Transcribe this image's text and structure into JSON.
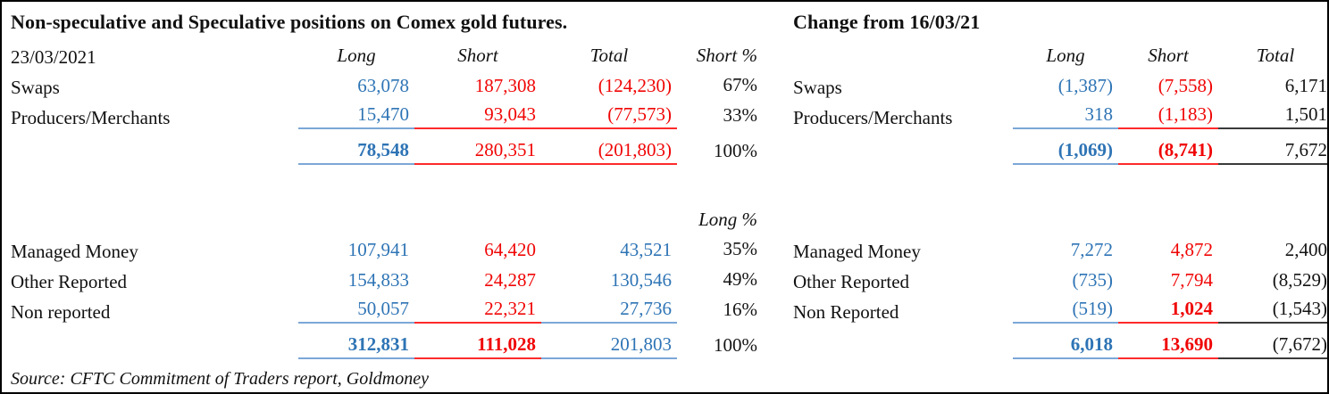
{
  "colors": {
    "long_blue": "#2e74b5",
    "short_red": "#f00505",
    "text_black": "#141414",
    "rule_blue": "#7ba7d7",
    "rule_red": "#fd2a2a",
    "rule_black": "#3a3a3a"
  },
  "left": {
    "title": "Non-speculative and Speculative positions on Comex gold futures.",
    "date": "23/03/2021",
    "headers": {
      "long": "Long",
      "short": "Short",
      "total": "Total",
      "pct": "Short %"
    },
    "pct_header2": "Long %",
    "rows_top": [
      {
        "label": "Swaps",
        "long": "63,078",
        "short": "187,308",
        "total": "(124,230)",
        "pct": "67%"
      },
      {
        "label": "Producers/Merchants",
        "long": "15,470",
        "short": "93,043",
        "total": "(77,573)",
        "pct": "33%"
      }
    ],
    "total_top": {
      "long": "78,548",
      "short": "280,351",
      "total": "(201,803)",
      "pct": "100%"
    },
    "rows_bottom": [
      {
        "label": "Managed Money",
        "long": "107,941",
        "short": "64,420",
        "total": "43,521",
        "pct": "35%"
      },
      {
        "label": "Other Reported",
        "long": "154,833",
        "short": "24,287",
        "total": "130,546",
        "pct": "49%"
      },
      {
        "label": "Non reported",
        "long": "50,057",
        "short": "22,321",
        "total": "27,736",
        "pct": "16%"
      }
    ],
    "total_bottom": {
      "long": "312,831",
      "short": "111,028",
      "total": "201,803",
      "pct": "100%"
    }
  },
  "right": {
    "title": "Change from 16/03/21",
    "headers": {
      "long": "Long",
      "short": "Short",
      "total": "Total"
    },
    "rows_top": [
      {
        "label": "Swaps",
        "long": "(1,387)",
        "short": "(7,558)",
        "total": "6,171"
      },
      {
        "label": "Producers/Merchants",
        "long": "318",
        "short": "(1,183)",
        "total": "1,501"
      }
    ],
    "total_top": {
      "long": "(1,069)",
      "short": "(8,741)",
      "total": "7,672"
    },
    "rows_bottom": [
      {
        "label": "Managed Money",
        "long": "7,272",
        "short": "4,872",
        "total": "2,400"
      },
      {
        "label": "Other Reported",
        "long": "(735)",
        "short": "7,794",
        "total": "(8,529)"
      },
      {
        "label": "Non Reported",
        "long": "(519)",
        "short": "1,024",
        "total": "(1,543)"
      }
    ],
    "total_bottom": {
      "long": "6,018",
      "short": "13,690",
      "total": "(7,672)"
    }
  },
  "source": "Source: CFTC Commitment of Traders report, Goldmoney"
}
